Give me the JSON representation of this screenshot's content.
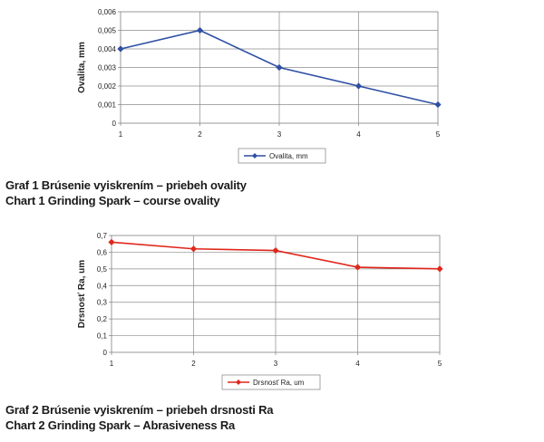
{
  "chart_data": [
    {
      "type": "line",
      "x": [
        1,
        2,
        3,
        4,
        5
      ],
      "series": [
        {
          "name": "Ovalita, mm",
          "values": [
            0.004,
            0.005,
            0.003,
            0.002,
            0.001
          ],
          "color": "#2e4fa3"
        }
      ],
      "ylabel": "Ovalita, mm",
      "xlabel": "",
      "ylim": [
        0,
        0.006
      ],
      "yticks": [
        "0",
        "0,001",
        "0,002",
        "0,003",
        "0,004",
        "0,005",
        "0,006"
      ],
      "xticks": [
        "1",
        "2",
        "3",
        "4",
        "5"
      ],
      "grid": true,
      "legend": "bottom"
    },
    {
      "type": "line",
      "x": [
        1,
        2,
        3,
        4,
        5
      ],
      "series": [
        {
          "name": "Drsnosť Ra, um",
          "values": [
            0.66,
            0.62,
            0.61,
            0.51,
            0.5
          ],
          "color": "#e0261b"
        }
      ],
      "ylabel": "Drsnosť Ra, um",
      "xlabel": "",
      "ylim": [
        0,
        0.7
      ],
      "yticks": [
        "0",
        "0,1",
        "0,2",
        "0,3",
        "0,4",
        "0,5",
        "0,6",
        "0,7"
      ],
      "xticks": [
        "1",
        "2",
        "3",
        "4",
        "5"
      ],
      "grid": true,
      "legend": "bottom"
    }
  ],
  "captions": {
    "chart1_line1": "Graf 1 Brúsenie vyiskrením – priebeh ovality",
    "chart1_line2": "Chart 1 Grinding Spark – course ovality",
    "chart2_line1": "Graf 2 Brúsenie vyiskrením – priebeh drsnosti Ra",
    "chart2_line2": "Chart 2 Grinding Spark – Abrasiveness Ra"
  }
}
